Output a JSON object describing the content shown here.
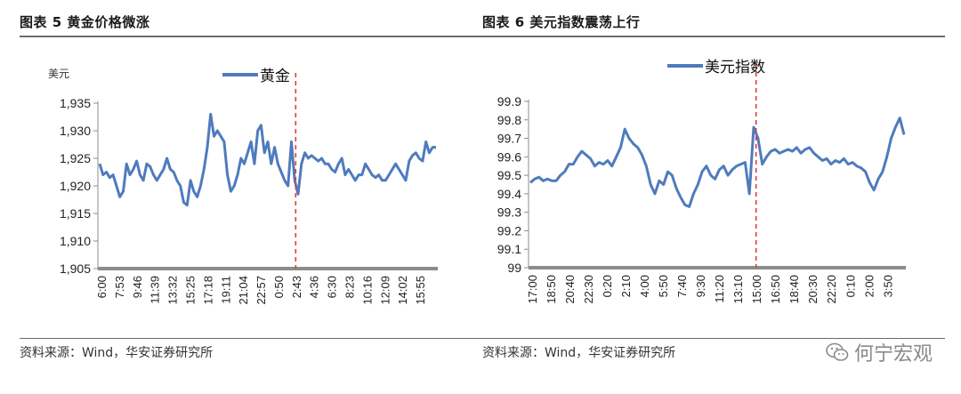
{
  "watermark": {
    "text": "何宁宏观",
    "icon": "wechat-icon"
  },
  "colors": {
    "series": "#4f7bbd",
    "axis": "#8c8c8c",
    "marker": "#e03c31"
  },
  "chart_data": [
    {
      "type": "line",
      "figure_label": "图表 5  黄金价格微涨",
      "unit": "美元",
      "source": "资料来源：Wind，华安证券研究所",
      "ylim": [
        1905,
        1935
      ],
      "yticks": [
        1905,
        1910,
        1915,
        1920,
        1925,
        1930,
        1935
      ],
      "ytick_labels": [
        "1,905",
        "1,910",
        "1,915",
        "1,920",
        "1,925",
        "1,930",
        "1,935"
      ],
      "xtick_labels": [
        "6:00",
        "7:53",
        "9:46",
        "11:39",
        "13:32",
        "15:25",
        "17:18",
        "19:11",
        "21:04",
        "22:57",
        "0:50",
        "2:43",
        "4:36",
        "6:30",
        "8:23",
        "10:16",
        "12:09",
        "14:02",
        "15:55"
      ],
      "legend": "top-center",
      "marker_line_at_tick": 11,
      "series": [
        {
          "name": "黄金",
          "values": [
            1924,
            1922,
            1922.5,
            1921.5,
            1922,
            1920,
            1918,
            1919,
            1924,
            1922,
            1923,
            1924.5,
            1922,
            1921,
            1924,
            1923.5,
            1922,
            1921,
            1922,
            1923,
            1925,
            1923,
            1922.5,
            1921,
            1920,
            1917,
            1916.5,
            1921,
            1919,
            1918,
            1920,
            1923,
            1927,
            1933,
            1929,
            1930,
            1929,
            1928,
            1922,
            1919,
            1920,
            1922,
            1925,
            1924,
            1926,
            1928,
            1924,
            1930,
            1931,
            1926,
            1928,
            1924,
            1927,
            1924,
            1922.5,
            1921,
            1920,
            1928,
            1921,
            1918.5,
            1924,
            1926,
            1925,
            1925.5,
            1925,
            1924.5,
            1925,
            1924,
            1924,
            1923,
            1922.5,
            1924,
            1925,
            1922,
            1923,
            1922,
            1921,
            1922,
            1922,
            1924,
            1923,
            1922,
            1921.5,
            1922,
            1921,
            1921,
            1922,
            1923,
            1924,
            1923,
            1922,
            1921,
            1924.5,
            1925.5,
            1926,
            1925,
            1924.5,
            1928,
            1926,
            1927,
            1927
          ]
        }
      ]
    },
    {
      "type": "line",
      "figure_label": "图表 6  美元指数震荡上行",
      "unit": "",
      "source": "资料来源：Wind，华安证券研究所",
      "ylim": [
        99,
        99.9
      ],
      "yticks": [
        99,
        99.1,
        99.2,
        99.3,
        99.4,
        99.5,
        99.6,
        99.7,
        99.8,
        99.9
      ],
      "ytick_labels": [
        "99",
        "99.1",
        "99.2",
        "99.3",
        "99.4",
        "99.5",
        "99.6",
        "99.7",
        "99.8",
        "99.9"
      ],
      "xtick_labels": [
        "17:00",
        "18:50",
        "20:40",
        "22:30",
        "0:20",
        "2:10",
        "4:00",
        "5:50",
        "7:40",
        "9:30",
        "11:20",
        "13:10",
        "15:00",
        "16:50",
        "18:40",
        "20:30",
        "22:20",
        "0:10",
        "2:00",
        "3:50"
      ],
      "legend": "top-center",
      "marker_line_at_tick": 12,
      "series": [
        {
          "name": "美元指数",
          "values": [
            99.46,
            99.48,
            99.49,
            99.47,
            99.48,
            99.47,
            99.47,
            99.5,
            99.52,
            99.56,
            99.56,
            99.6,
            99.63,
            99.61,
            99.59,
            99.55,
            99.57,
            99.56,
            99.58,
            99.55,
            99.6,
            99.65,
            99.75,
            99.7,
            99.67,
            99.65,
            99.61,
            99.55,
            99.45,
            99.4,
            99.47,
            99.45,
            99.52,
            99.5,
            99.43,
            99.38,
            99.34,
            99.33,
            99.4,
            99.45,
            99.52,
            99.55,
            99.5,
            99.48,
            99.53,
            99.55,
            99.5,
            99.53,
            99.55,
            99.56,
            99.57,
            99.4,
            99.76,
            99.7,
            99.56,
            99.6,
            99.63,
            99.64,
            99.62,
            99.63,
            99.64,
            99.63,
            99.65,
            99.62,
            99.64,
            99.65,
            99.62,
            99.6,
            99.58,
            99.59,
            99.56,
            99.58,
            99.57,
            99.59,
            99.56,
            99.57,
            99.55,
            99.54,
            99.52,
            99.46,
            99.42,
            99.48,
            99.52,
            99.6,
            99.7,
            99.76,
            99.81,
            99.72
          ]
        }
      ]
    }
  ]
}
